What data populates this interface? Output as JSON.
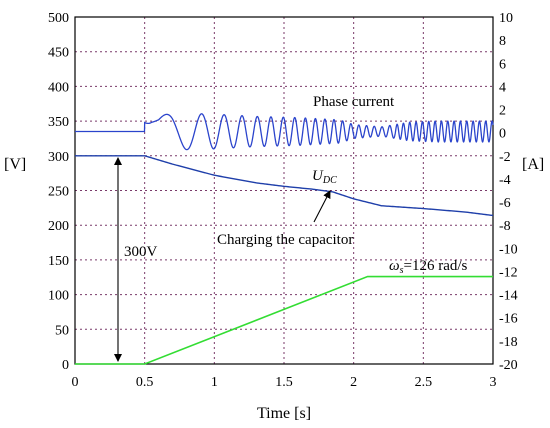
{
  "chart_data": {
    "type": "line",
    "xlabel": "Time [s]",
    "ylabel_left": "[V]",
    "ylabel_right": "[A]",
    "xlim": [
      0,
      3
    ],
    "ylim_left": [
      0,
      500
    ],
    "ylim_right": [
      -20,
      10
    ],
    "x_ticks": [
      "0",
      "0.5",
      "1",
      "1.5",
      "2",
      "2.5",
      "3"
    ],
    "y_left_ticks": [
      "0",
      "50",
      "100",
      "150",
      "200",
      "250",
      "300",
      "350",
      "400",
      "450",
      "500"
    ],
    "y_right_ticks": [
      "-20",
      "-18",
      "-16",
      "-14",
      "-12",
      "-10",
      "-8",
      "-6",
      "-4",
      "-2",
      "0",
      "2",
      "4",
      "6",
      "8",
      "10"
    ],
    "grid": true,
    "colors": {
      "voltage": "#1f3faa",
      "current": "#2b44cc",
      "speed": "#33dd33",
      "grid": "#7a3a6a"
    },
    "series": [
      {
        "key": "udc",
        "axis": "left",
        "x": [
          0,
          0.5,
          0.7,
          1.0,
          1.3,
          1.5,
          1.7,
          1.85,
          2.0,
          2.2,
          2.5,
          2.8,
          3.0
        ],
        "values": [
          300,
          300,
          288,
          272,
          261,
          256,
          252,
          248,
          238,
          228,
          224,
          219,
          214
        ]
      },
      {
        "key": "phase_current",
        "axis": "right",
        "envelope": {
          "x": [
            0,
            0.49,
            0.5,
            0.55,
            0.7,
            1.0,
            1.3,
            1.6,
            1.9,
            2.0,
            2.2,
            2.4,
            2.6,
            2.8,
            3.0
          ],
          "amplitude": [
            0,
            0,
            0.3,
            1.2,
            1.6,
            1.5,
            1.3,
            1.2,
            1.0,
            0.6,
            0.4,
            0.8,
            0.9,
            0.9,
            0.9
          ]
        },
        "offset": 0.1
      },
      {
        "key": "omega_s",
        "axis": "left",
        "x": [
          0,
          0.5,
          2.1,
          3.0
        ],
        "values": [
          0,
          0,
          126,
          126
        ]
      }
    ],
    "annotations": {
      "phase_current": "Phase current",
      "udc_main": "U",
      "udc_sub": "DC",
      "charging": "Charging the capacitor",
      "voltage_300": "300V",
      "omega_symbol": "ω",
      "omega_sub": "s",
      "omega_value": "=126 rad/s"
    }
  }
}
